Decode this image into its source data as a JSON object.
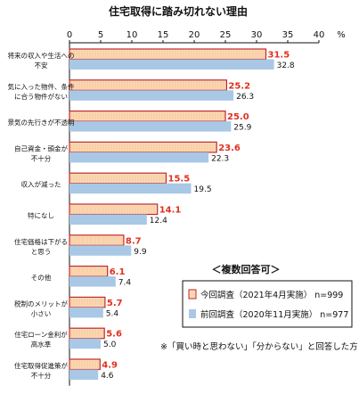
{
  "chart_data": {
    "type": "bar",
    "orientation": "horizontal",
    "title": "住宅取得に踏み切れない理由",
    "unit": "%",
    "xlim": [
      0,
      40
    ],
    "xticks": [
      0,
      5,
      10,
      15,
      20,
      25,
      30,
      35,
      40
    ],
    "grid": false,
    "categories": [
      [
        "将来の収入や生活への",
        "不安"
      ],
      [
        "気に入った物件、条件",
        "に合う物件がない"
      ],
      [
        "景気の先行きが不透明"
      ],
      [
        "自己資金・頭金が",
        "不十分"
      ],
      [
        "収入が減った"
      ],
      [
        "特になし"
      ],
      [
        "住宅価格は下がる",
        "と思う"
      ],
      [
        "その他"
      ],
      [
        "税制のメリットが",
        "小さい"
      ],
      [
        "住宅ローン金利が",
        "高水準"
      ],
      [
        "住宅取得促進策が",
        "不十分"
      ]
    ],
    "series": [
      {
        "name": "今回調査（2021年4月実施） n=999",
        "values": [
          31.5,
          25.2,
          25.0,
          23.6,
          15.5,
          14.1,
          8.7,
          6.1,
          5.7,
          5.6,
          4.9
        ],
        "labels": [
          "31.5",
          "25.2",
          "25.0",
          "23.6",
          "15.5",
          "14.1",
          "8.7",
          "6.1",
          "5.7",
          "5.6",
          "4.9"
        ]
      },
      {
        "name": "前回調査（2020年11月実施） n=977",
        "values": [
          32.8,
          26.3,
          25.9,
          22.3,
          19.5,
          12.4,
          9.9,
          7.4,
          5.4,
          5.0,
          4.6
        ],
        "labels": [
          "32.8",
          "26.3",
          "25.9",
          "22.3",
          "19.5",
          "12.4",
          "9.9",
          "7.4",
          "5.4",
          "5.0",
          "4.6"
        ]
      }
    ],
    "legend": {
      "title": "＜複数回答可＞",
      "position": "bottom-right"
    },
    "note": "※「買い時と思わない」「分からない」と回答した方",
    "colors": {
      "current_fill": "#fbd9b4",
      "current_stroke": "#c0292e",
      "current_label": "#e0301e",
      "previous_fill": "#a8c8e6",
      "previous_stroke": "#a8c8e6"
    }
  }
}
